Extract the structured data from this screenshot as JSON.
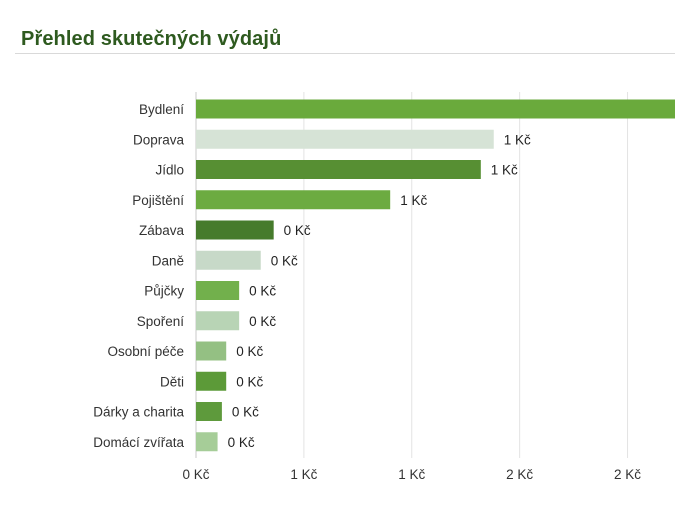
{
  "header": {
    "title": "Přehled skutečných výdajů"
  },
  "chart_data": {
    "type": "bar",
    "orientation": "horizontal",
    "categories": [
      "Bydlení",
      "Doprava",
      "Jídlo",
      "Pojištění",
      "Zábava",
      "Daně",
      "Půjčky",
      "Spoření",
      "Osobní péče",
      "Děti",
      "Dárky a charita",
      "Domácí zvířata"
    ],
    "values": [
      2.22,
      1.38,
      1.32,
      0.9,
      0.36,
      0.3,
      0.2,
      0.2,
      0.14,
      0.14,
      0.12,
      0.1
    ],
    "value_labels": [
      "",
      "1 Kč",
      "1 Kč",
      "1 Kč",
      "0 Kč",
      "0 Kč",
      "0 Kč",
      "0 Kč",
      "0 Kč",
      "0 Kč",
      "0 Kč",
      "0 Kč"
    ],
    "colors": [
      "#6aaa3c",
      "#d6e3d6",
      "#578f33",
      "#6cab41",
      "#467b2c",
      "#c7d9c8",
      "#72b04c",
      "#b8d4b5",
      "#94c083",
      "#5c9a38",
      "#5e9a3c",
      "#a6cd98"
    ],
    "x_ticks": [
      0,
      0.5,
      1,
      1.5,
      2
    ],
    "x_tick_labels": [
      "0 Kč",
      "1 Kč",
      "1 Kč",
      "2 Kč",
      "2 Kč"
    ],
    "xlim": [
      0,
      2.22
    ],
    "grid": "vertical",
    "legend": "none"
  }
}
